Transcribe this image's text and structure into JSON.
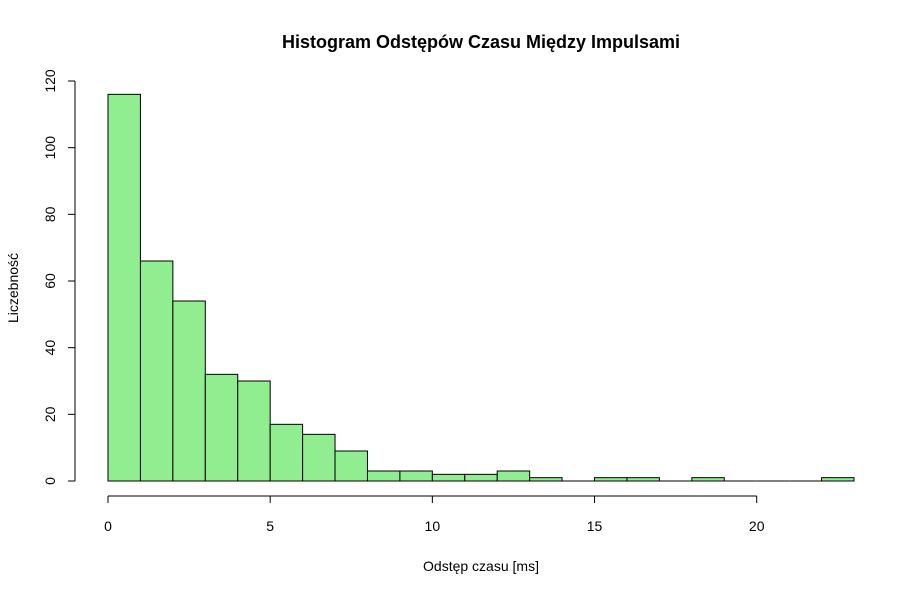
{
  "chart_data": {
    "type": "bar",
    "title": "Histogram Odstępów Czasu Między Impulsami",
    "xlabel": "Odstęp czasu [ms]",
    "ylabel": "Liczebność",
    "bin_width": 1,
    "bins": [
      {
        "x0": 0,
        "x1": 1,
        "count": 116
      },
      {
        "x0": 1,
        "x1": 2,
        "count": 66
      },
      {
        "x0": 2,
        "x1": 3,
        "count": 54
      },
      {
        "x0": 3,
        "x1": 4,
        "count": 32
      },
      {
        "x0": 4,
        "x1": 5,
        "count": 30
      },
      {
        "x0": 5,
        "x1": 6,
        "count": 17
      },
      {
        "x0": 6,
        "x1": 7,
        "count": 14
      },
      {
        "x0": 7,
        "x1": 8,
        "count": 9
      },
      {
        "x0": 8,
        "x1": 9,
        "count": 3
      },
      {
        "x0": 9,
        "x1": 10,
        "count": 3
      },
      {
        "x0": 10,
        "x1": 11,
        "count": 2
      },
      {
        "x0": 11,
        "x1": 12,
        "count": 2
      },
      {
        "x0": 12,
        "x1": 13,
        "count": 3
      },
      {
        "x0": 13,
        "x1": 14,
        "count": 1
      },
      {
        "x0": 14,
        "x1": 15,
        "count": 0
      },
      {
        "x0": 15,
        "x1": 16,
        "count": 1
      },
      {
        "x0": 16,
        "x1": 17,
        "count": 1
      },
      {
        "x0": 17,
        "x1": 18,
        "count": 0
      },
      {
        "x0": 18,
        "x1": 19,
        "count": 1
      },
      {
        "x0": 19,
        "x1": 20,
        "count": 0
      },
      {
        "x0": 20,
        "x1": 21,
        "count": 0
      },
      {
        "x0": 21,
        "x1": 22,
        "count": 0
      },
      {
        "x0": 22,
        "x1": 23,
        "count": 1
      }
    ],
    "xlim": [
      0,
      23
    ],
    "ylim": [
      0,
      120
    ],
    "x_ticks": [
      0,
      5,
      10,
      15,
      20
    ],
    "y_ticks": [
      0,
      20,
      40,
      60,
      80,
      100,
      120
    ],
    "bar_color": "#90ee90",
    "bar_edge_color": "#000000",
    "grid": false,
    "legend": "none"
  }
}
